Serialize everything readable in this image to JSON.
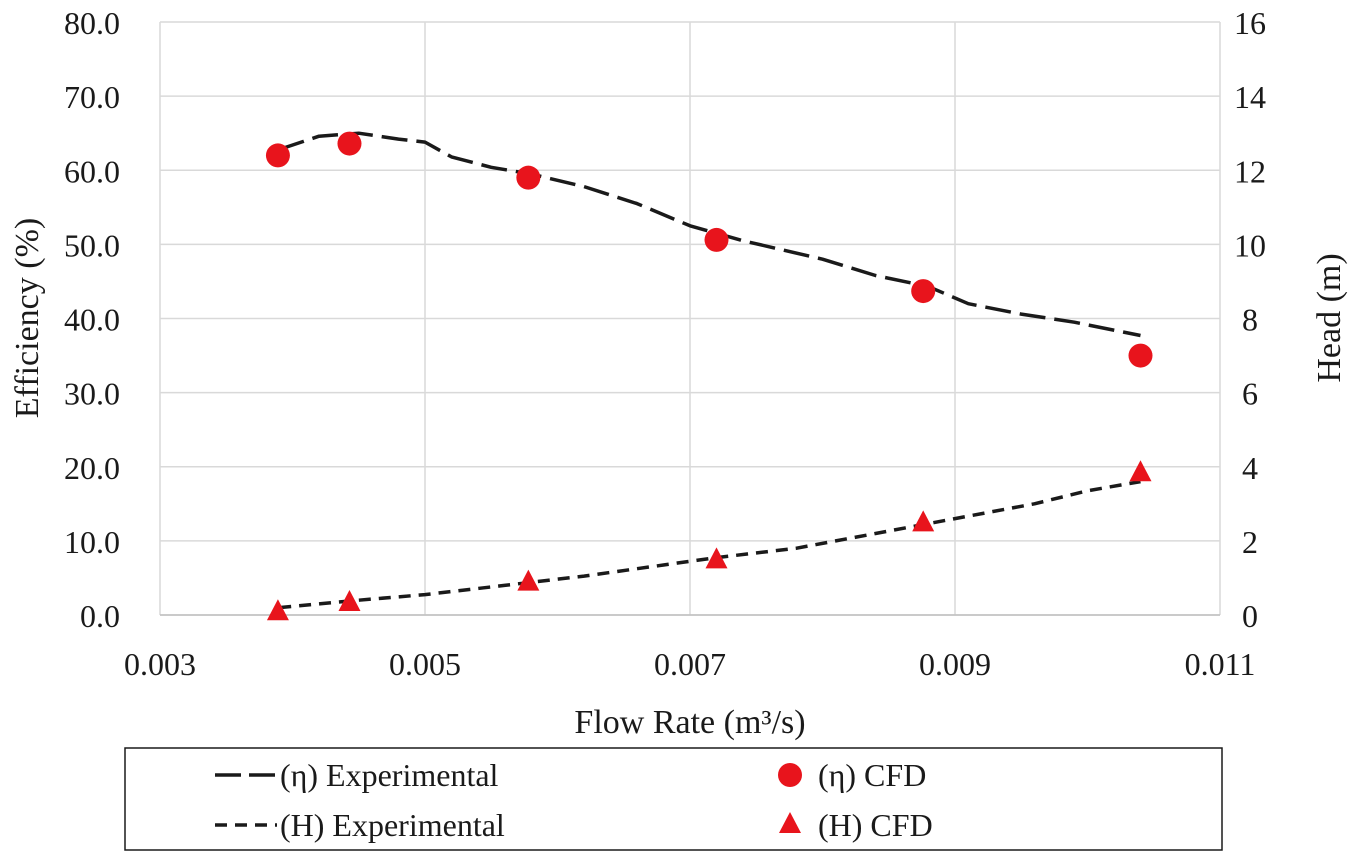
{
  "chart_data": {
    "type": "line",
    "title": "",
    "xlabel": "Flow Rate (m³/s)",
    "ylabel": "Efficiency (%)",
    "y2label": "Head (m)",
    "xlim": [
      0.003,
      0.011
    ],
    "ylim": [
      0,
      80
    ],
    "y2lim": [
      0,
      16
    ],
    "x_ticks": [
      "0.003",
      "0.005",
      "0.007",
      "0.009",
      "0.011"
    ],
    "x_tick_values": [
      0.003,
      0.005,
      0.007,
      0.009,
      0.011
    ],
    "y_ticks": [
      "0.0",
      "10.0",
      "20.0",
      "30.0",
      "40.0",
      "50.0",
      "60.0",
      "70.0",
      "80.0"
    ],
    "y_tick_values": [
      0,
      10,
      20,
      30,
      40,
      50,
      60,
      70,
      80
    ],
    "y2_ticks": [
      "0",
      "2",
      "4",
      "6",
      "8",
      "10",
      "12",
      "14",
      "16"
    ],
    "y2_tick_values": [
      0,
      2,
      4,
      6,
      8,
      10,
      12,
      14,
      16
    ],
    "grid": true,
    "legend_position": "bottom",
    "series": [
      {
        "name": "(η) Experimental",
        "axis": "left",
        "style": "long-dash",
        "color": "#1a1a1a",
        "x": [
          0.0039,
          0.0042,
          0.0045,
          0.0048,
          0.005,
          0.0052,
          0.0055,
          0.0058,
          0.0062,
          0.0066,
          0.007,
          0.0074,
          0.008,
          0.0084,
          0.0088,
          0.0091,
          0.0095,
          0.0099,
          0.0104
        ],
        "y": [
          62.8,
          64.6,
          65.0,
          64.2,
          63.8,
          61.8,
          60.4,
          59.5,
          57.8,
          55.5,
          52.5,
          50.5,
          48.0,
          45.8,
          44.3,
          42.0,
          40.6,
          39.5,
          37.7
        ]
      },
      {
        "name": "(H) Experimental",
        "axis": "right",
        "style": "short-dash",
        "color": "#1a1a1a",
        "x": [
          0.0039,
          0.0045,
          0.005,
          0.0056,
          0.0062,
          0.0068,
          0.0072,
          0.0078,
          0.0084,
          0.009,
          0.0096,
          0.01,
          0.0104
        ],
        "y": [
          0.2,
          0.4,
          0.55,
          0.8,
          1.05,
          1.35,
          1.55,
          1.8,
          2.2,
          2.6,
          3.0,
          3.35,
          3.6
        ]
      },
      {
        "name": "(η) CFD",
        "axis": "left",
        "style": "circle",
        "color": "#e8141c",
        "x": [
          0.00389,
          0.00443,
          0.00578,
          0.0072,
          0.00876,
          0.0104
        ],
        "y": [
          62.0,
          63.6,
          59.0,
          50.6,
          43.7,
          35.0
        ]
      },
      {
        "name": "(H) CFD",
        "axis": "right",
        "style": "triangle",
        "color": "#e8141c",
        "x": [
          0.00389,
          0.00443,
          0.00578,
          0.0072,
          0.00876,
          0.0104
        ],
        "y": [
          0.1,
          0.35,
          0.9,
          1.5,
          2.5,
          3.85
        ]
      }
    ]
  }
}
